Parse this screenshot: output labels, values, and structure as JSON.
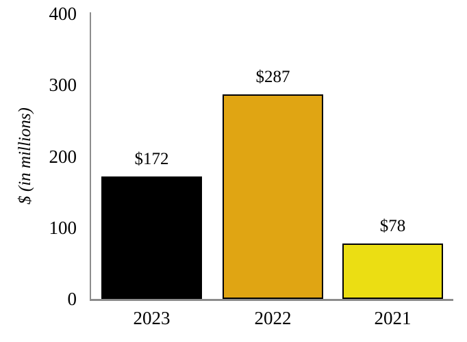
{
  "chart_data": {
    "type": "bar",
    "title": "",
    "xlabel": "",
    "ylabel": "$ (in millions)",
    "categories": [
      "2023",
      "2022",
      "2021"
    ],
    "values": [
      172,
      287,
      78
    ],
    "bar_labels": [
      "$172",
      "$287",
      "$78"
    ],
    "bar_colors": [
      "#000000",
      "#E0A513",
      "#EBDE13"
    ],
    "yticks": [
      0,
      100,
      200,
      300,
      400
    ],
    "ylim": [
      0,
      400
    ],
    "grid": false
  },
  "colors": {
    "axis_line": "#8C8C8C",
    "text": "#000000",
    "background": "#FFFFFF"
  }
}
